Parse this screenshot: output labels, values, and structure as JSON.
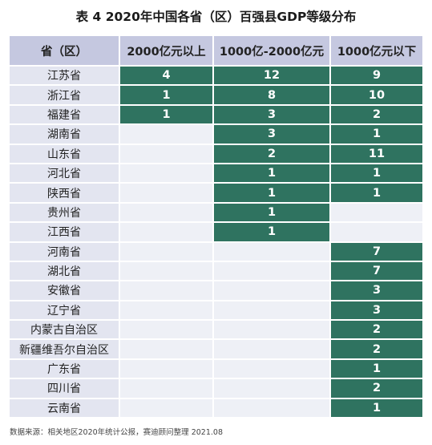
{
  "title": "表 4  2020年中国各省（区）百强县GDP等级分布",
  "headers": [
    "省（区）",
    "2000亿元以上",
    "1000亿-2000亿元",
    "1000亿元以下"
  ],
  "rows": [
    {
      "province": "江苏省",
      "values": [
        "4",
        "12",
        "9"
      ]
    },
    {
      "province": "浙江省",
      "values": [
        "1",
        "8",
        "10"
      ]
    },
    {
      "province": "福建省",
      "values": [
        "1",
        "3",
        "2"
      ]
    },
    {
      "province": "湖南省",
      "values": [
        "",
        "3",
        "1"
      ]
    },
    {
      "province": "山东省",
      "values": [
        "",
        "2",
        "11"
      ]
    },
    {
      "province": "河北省",
      "values": [
        "",
        "1",
        "1"
      ]
    },
    {
      "province": "陕西省",
      "values": [
        "",
        "1",
        "1"
      ]
    },
    {
      "province": "贵州省",
      "values": [
        "",
        "1",
        ""
      ]
    },
    {
      "province": "江西省",
      "values": [
        "",
        "1",
        ""
      ]
    },
    {
      "province": "河南省",
      "values": [
        "",
        "",
        "7"
      ]
    },
    {
      "province": "湖北省",
      "values": [
        "",
        "",
        "7"
      ]
    },
    {
      "province": "安徽省",
      "values": [
        "",
        "",
        "3"
      ]
    },
    {
      "province": "辽宁省",
      "values": [
        "",
        "",
        "3"
      ]
    },
    {
      "province": "内蒙古自治区",
      "values": [
        "",
        "",
        "2"
      ]
    },
    {
      "province": "新疆维吾尔自治区",
      "values": [
        "",
        "",
        "2"
      ]
    },
    {
      "province": "广东省",
      "values": [
        "",
        "",
        "1"
      ]
    },
    {
      "province": "四川省",
      "values": [
        "",
        "",
        "2"
      ]
    },
    {
      "province": "云南省",
      "values": [
        "",
        "",
        "1"
      ]
    }
  ],
  "source": "数据来源：相关地区2020年统计公报，赛迪顾问整理  2021.08",
  "colors": {
    "header_bg": "#c5c8e0",
    "province_bg": "#e3e5f0",
    "empty_bg": "#eef0f6",
    "value_bg": "#2f7360",
    "value_text": "#ffffff"
  }
}
